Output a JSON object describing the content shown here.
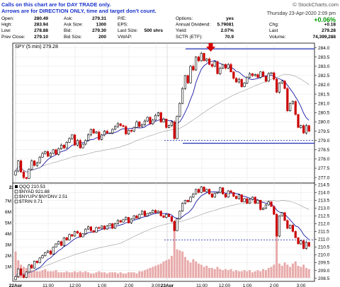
{
  "header": {
    "note_line1": "Calls on this chart are for DAY TRADE only.",
    "note_line2": "Arrows are for DIRECTION ONLY, time and target don't count.",
    "watermark": "© StockCharts.com",
    "date_line": "Thursday  23-Apr-2020  2:09 pm",
    "pct_change": "+0.06%",
    "quote_rows": [
      [
        [
          "Open:",
          "280.49"
        ],
        [
          "Ask:",
          "279.31"
        ],
        [
          "P/E:",
          ""
        ],
        [
          "Options:",
          "yes"
        ]
      ],
      [
        [
          "High:",
          "283.94"
        ],
        [
          "Ask Size:",
          "1300"
        ],
        [
          "EPS:",
          ""
        ],
        [
          "Annual Dividend:",
          "5.79081"
        ]
      ],
      [
        [
          "Low:",
          "278.88"
        ],
        [
          "Bid:",
          "279.30"
        ],
        [
          "Last Size:",
          "500 shrs"
        ],
        [
          "Yield:",
          "2.07%"
        ]
      ],
      [
        [
          "Prev Close:",
          "279.10"
        ],
        [
          "Bid Size:",
          "200"
        ],
        [
          "VWAP:",
          ""
        ],
        [
          "SCTR (ETF):",
          "70.9"
        ]
      ]
    ],
    "right_rows": [
      [
        "Chg:",
        "+0.18"
      ],
      [
        "Last",
        "279.28"
      ],
      [
        "Volume:",
        "74,399,288"
      ]
    ]
  },
  "colors": {
    "up": "#000000",
    "down": "#cc0000",
    "ma_blue": "#1a1aa6",
    "ma_gray": "#999999",
    "guide_blue": "#1f2fb5",
    "volume": "#e8aaaa",
    "arrow": "#d40000",
    "pct_green": "#009900"
  },
  "chart_data": [
    {
      "type": "candlestick",
      "title": "SPY (5 min) 279.28",
      "y_ticks": [
        277.0,
        277.5,
        278.0,
        278.5,
        279.0,
        279.5,
        280.0,
        280.5,
        281.0,
        281.5,
        282.0,
        282.5,
        283.0,
        283.5,
        284.0
      ],
      "ylim": [
        276.7,
        284.25
      ],
      "x_ticks": [
        "22Apr",
        "11:00",
        "12:00",
        "1:00",
        "2:00",
        "3:00",
        "23Apr",
        "11:00",
        "12:00",
        "1:00",
        "2:00"
      ],
      "series": [
        {
          "name": "",
          "values": [
            277.35,
            277.9,
            277.3,
            277.0,
            276.95,
            277.45,
            277.9,
            277.65,
            277.8,
            278.1,
            278.3,
            278.4,
            278.15,
            278.3,
            278.5,
            278.25,
            278.55,
            278.75,
            278.6,
            278.9,
            279.1,
            279.3,
            278.75,
            279.0,
            278.6,
            278.8,
            279.0,
            279.3,
            279.6,
            279.4,
            279.45,
            279.05,
            279.3,
            279.5,
            279.4,
            279.4,
            279.6,
            279.75,
            279.9,
            279.8,
            279.75,
            279.35,
            279.55,
            279.5,
            279.7,
            280.0,
            279.75,
            279.85,
            280.05,
            280.25,
            279.9,
            280.1,
            280.35,
            280.5,
            280.0,
            280.15,
            279.7,
            279.8,
            280.0,
            279.1,
            280.3,
            281.0,
            281.8,
            282.5,
            282.1,
            283.0,
            282.8,
            283.5,
            283.3,
            283.7,
            283.3,
            283.4,
            283.1,
            283.0,
            283.25,
            282.6,
            282.9,
            283.1,
            282.9,
            283.1,
            282.7,
            282.35,
            282.15,
            282.3,
            281.9,
            282.1,
            282.4,
            282.6,
            282.5,
            282.55,
            282.4,
            282.7,
            282.45,
            282.2,
            282.6,
            282.65,
            282.3,
            281.6,
            282.1,
            282.2,
            281.8,
            280.6,
            281.0,
            281.1,
            280.4,
            279.7,
            279.8,
            279.4,
            279.8,
            279.5
          ]
        }
      ],
      "reference_lines": [
        279.0,
        278.85
      ]
    },
    {
      "type": "candlestick",
      "title": "QQQ 210.53",
      "legend": [
        "$NYAD 921.88",
        "$NYUPV:$NYDNV 2.51",
        "$TRIN 0.71"
      ],
      "y_ticks": [
        208.5,
        209.0,
        209.5,
        210.0,
        210.5,
        211.0,
        211.5,
        212.0,
        212.5,
        213.0,
        213.5,
        214.0,
        214.5
      ],
      "ylim": [
        208.3,
        214.6
      ],
      "volume_ticks": [
        "1M",
        "2M",
        "3M",
        "4M",
        "5M",
        "6M",
        "7M"
      ],
      "x_ticks": [
        "22Apr",
        "11:00",
        "12:00",
        "1:00",
        "2:00",
        "3:00",
        "23Apr",
        "11:00",
        "12:00",
        "1:00",
        "2:00",
        "3:00"
      ],
      "series": [
        {
          "name": "",
          "values": [
            208.6,
            209.1,
            208.7,
            208.55,
            208.9,
            209.35,
            209.15,
            209.6,
            209.5,
            209.8,
            209.95,
            210.15,
            210.25,
            210.05,
            210.5,
            210.7,
            210.85,
            210.6,
            211.1,
            210.95,
            211.3,
            211.2,
            211.5,
            211.4,
            211.15,
            211.35,
            211.65,
            211.8,
            211.55,
            211.45,
            211.75,
            211.7,
            211.85,
            211.65,
            211.85,
            212.0,
            211.7,
            212.0,
            212.2,
            212.1,
            212.25,
            212.4,
            212.05,
            212.3,
            212.5,
            212.35,
            212.6,
            212.8,
            212.5,
            212.65,
            212.7,
            212.85,
            212.7,
            212.8,
            212.5,
            212.4,
            212.6,
            212.45,
            212.15,
            211.55,
            212.3,
            212.8,
            213.3,
            213.5,
            213.4,
            213.7,
            213.9,
            214.2,
            214.0,
            214.35,
            214.05,
            214.2,
            213.9,
            213.7,
            213.95,
            214.0,
            214.3,
            213.9,
            213.7,
            214.1,
            214.0,
            213.75,
            213.6,
            213.85,
            213.4,
            213.6,
            213.3,
            213.55,
            213.7,
            213.3,
            213.5,
            212.9,
            213.0,
            213.2,
            213.4,
            213.1,
            212.6,
            211.2,
            212.5,
            212.7,
            212.2,
            211.7,
            211.9,
            211.5,
            211.1,
            210.7,
            210.9,
            210.4,
            210.8,
            210.55
          ]
        },
        {
          "name": "",
          "values": [
            2.4,
            1.6,
            1.2,
            1.0,
            0.9,
            0.8,
            0.7,
            0.7,
            0.6,
            0.6,
            0.7,
            0.8,
            0.6,
            0.6,
            0.6,
            0.7,
            0.5,
            0.5,
            0.5,
            0.6,
            0.5,
            0.5,
            0.6,
            0.5,
            0.6,
            0.5,
            0.6,
            0.5,
            0.4,
            0.4,
            0.5,
            0.6,
            0.5,
            0.5,
            0.4,
            0.5,
            0.5,
            0.5,
            0.4,
            0.5,
            0.4,
            0.4,
            0.5,
            0.5,
            0.5,
            0.4,
            0.6,
            0.6,
            0.7,
            0.8,
            0.9,
            1.0,
            1.1,
            1.2,
            1.3,
            1.5,
            1.6,
            1.7,
            2.0,
            4.6,
            2.6,
            2.5,
            2.4,
            1.9,
            1.6,
            1.4,
            1.7,
            1.5,
            1.3,
            1.2,
            1.0,
            1.1,
            0.9,
            0.9,
            0.8,
            1.0,
            0.8,
            0.7,
            0.8,
            0.7,
            0.8,
            0.6,
            0.7,
            0.6,
            0.6,
            0.7,
            0.6,
            0.7,
            0.5,
            0.6,
            0.7,
            0.6,
            0.8,
            0.7,
            0.9,
            1.0,
            1.2,
            4.7,
            1.3,
            1.1,
            1.4,
            1.2,
            1.0,
            1.3,
            1.5,
            1.1,
            1.0,
            1.2,
            0.9,
            0.8
          ]
        }
      ],
      "reference_lines": [
        210.95
      ]
    }
  ]
}
